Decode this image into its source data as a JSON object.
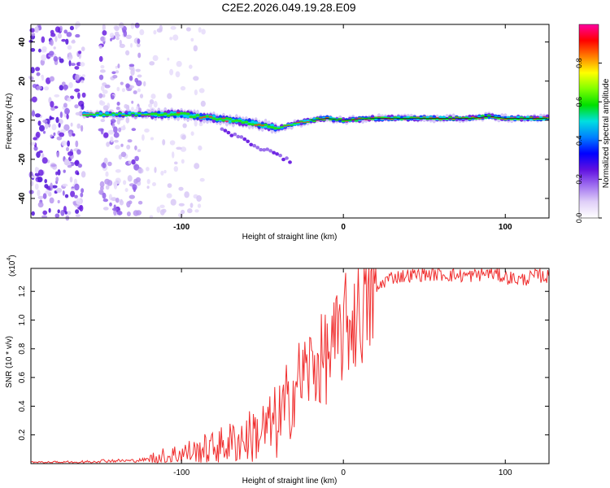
{
  "chart_data": [
    {
      "type": "heatmap",
      "title": "C2E2.2026.049.19.28.E09",
      "xlabel": "Height of straight line (km)",
      "ylabel": "Frequency (Hz)",
      "xlim": [
        -193,
        127
      ],
      "ylim": [
        -50,
        49
      ],
      "xticks": [
        -100,
        0,
        100
      ],
      "yticks": [
        -40,
        -20,
        0,
        20,
        40
      ],
      "colorbar": {
        "label": "Normalized spectral amplitude",
        "range": [
          0,
          1
        ],
        "ticks": [
          "0.0",
          "0.2",
          "0.4",
          "0.6",
          "0.8"
        ],
        "colors": [
          "#ffffff",
          "#e0d0f8",
          "#a070f0",
          "#6010e0",
          "#0000ff",
          "#0080ff",
          "#00e0e0",
          "#00e000",
          "#80ff00",
          "#ffff00",
          "#ff8000",
          "#ff0000",
          "#ff00a0"
        ]
      },
      "signal_trace": {
        "description_height_km": [
          -160,
          -140,
          -120,
          -100,
          -80,
          -60,
          -40,
          -30,
          -20,
          -10,
          0,
          20,
          40,
          60,
          80,
          90,
          100,
          127
        ],
        "frequency_hz": [
          3,
          3,
          3,
          3,
          1,
          -1,
          -4,
          -2,
          0,
          1,
          0,
          1,
          1,
          1,
          1,
          2,
          1,
          1
        ]
      }
    },
    {
      "type": "line",
      "xlabel": "Height of straight line (km)",
      "ylabel": "SNR (10 * v/v)",
      "scale_label": "(x10",
      "scale_exponent": "4",
      "xlim": [
        -193,
        127
      ],
      "ylim": [
        0,
        1.36
      ],
      "xticks": [
        -100,
        0,
        100
      ],
      "yticks": [
        0.2,
        0.4,
        0.6,
        0.8,
        1.0,
        1.2
      ],
      "ytick_labels": [
        "0.2",
        "0.4",
        "0.6",
        "0.8",
        "1.0",
        "1.2"
      ],
      "series": [
        {
          "name": "SNR",
          "color": "#f03030",
          "x": [
            -193,
            -160,
            -150,
            -130,
            -120,
            -100,
            -80,
            -60,
            -45,
            -38,
            -33,
            -30,
            -25,
            -20,
            -15,
            -10,
            -5,
            0,
            5,
            10,
            15,
            20,
            25,
            30,
            40,
            50,
            60,
            70,
            80,
            90,
            100,
            110,
            120,
            127
          ],
          "y": [
            0.0,
            0.01,
            0.02,
            0.02,
            0.03,
            0.07,
            0.11,
            0.18,
            0.25,
            0.32,
            0.4,
            0.55,
            0.62,
            0.67,
            0.7,
            0.75,
            0.82,
            0.93,
            1.0,
            1.06,
            1.12,
            1.2,
            1.27,
            1.3,
            1.31,
            1.32,
            1.32,
            1.31,
            1.31,
            1.33,
            1.3,
            1.28,
            1.31,
            1.3
          ]
        }
      ]
    }
  ]
}
